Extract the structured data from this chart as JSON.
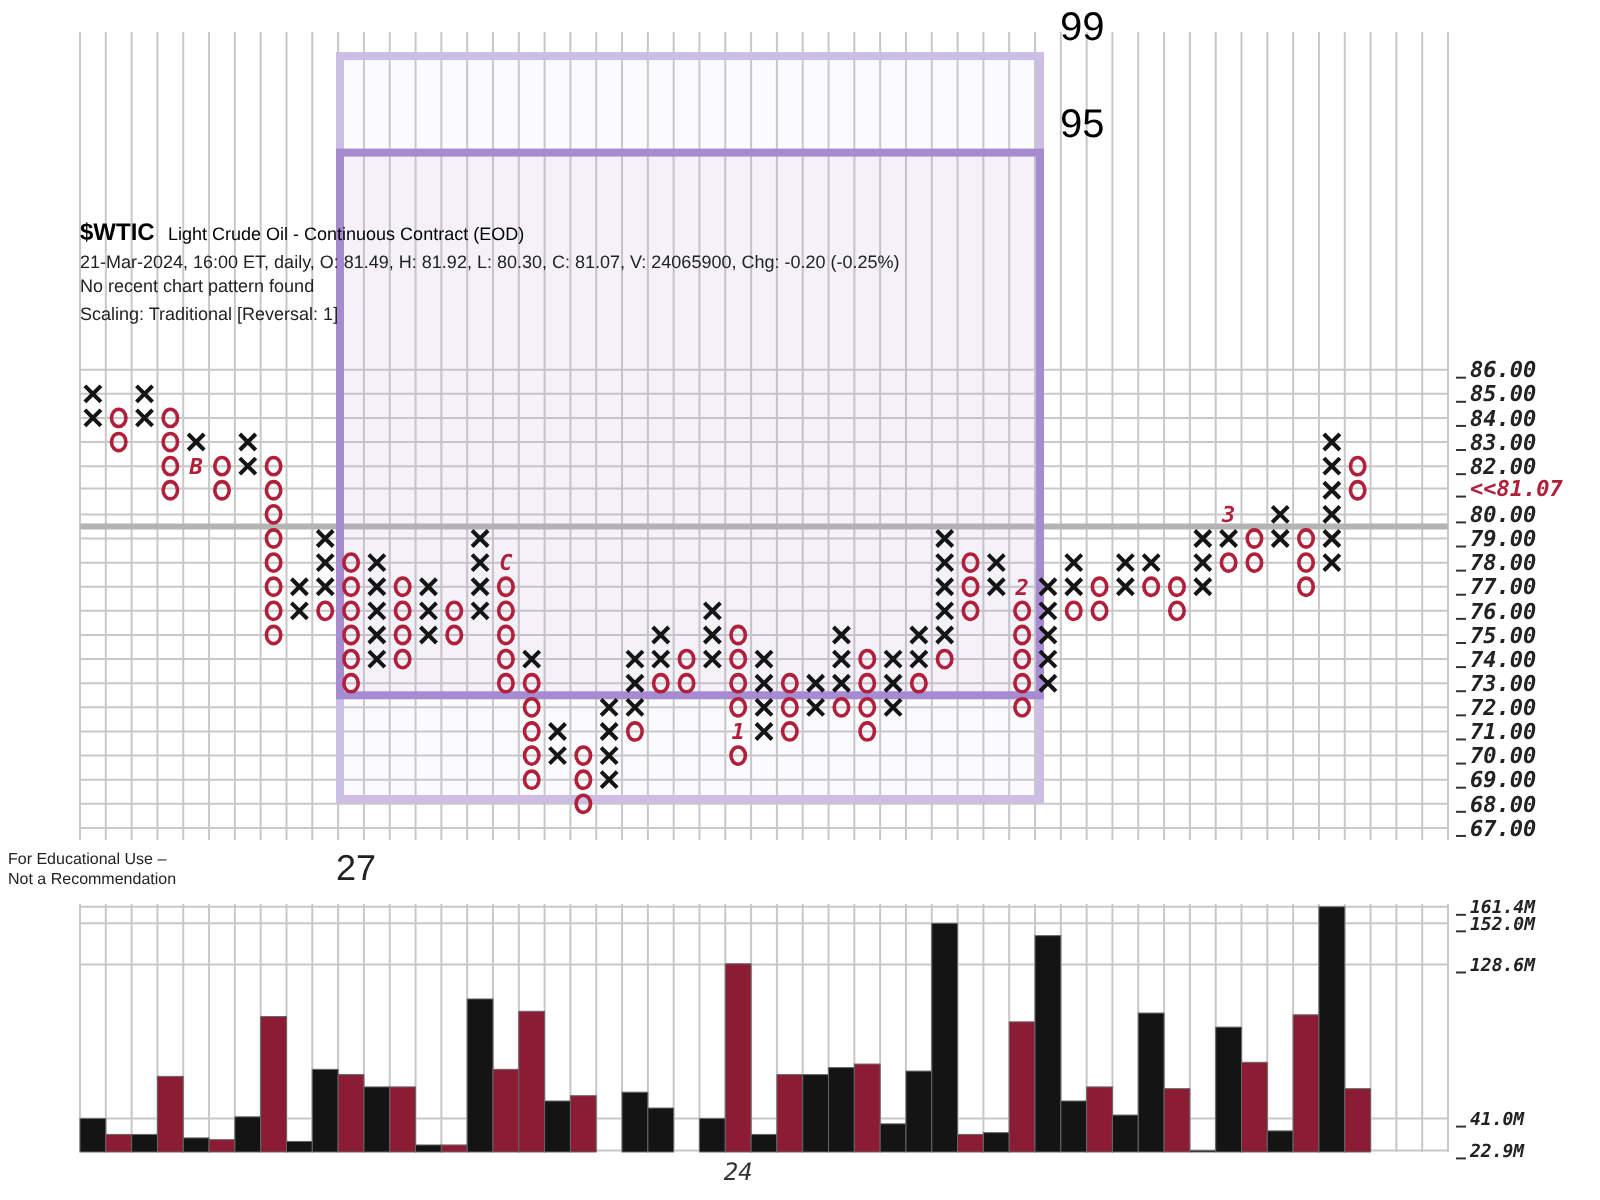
{
  "chart_data": [
    {
      "type": "scatter",
      "title": "$WTIC",
      "subtitle": "Light Crude Oil - Continuous Contract (EOD)",
      "annotations": [
        "21-Mar-2024, 16:00 ET, daily, O: 81.49, H: 81.92, L: 80.30, C: 81.07, V: 24065900, Chg: -0.20 (-0.25%)",
        "No recent chart pattern found",
        "Scaling: Traditional [Reversal: 1]",
        "For Educational Use – Not a Recommendation",
        "27",
        "B",
        "C",
        "1",
        "2",
        "3"
      ],
      "categories": [
        null,
        null,
        null,
        null,
        null,
        null,
        null,
        null,
        null,
        null,
        null,
        null,
        null,
        null,
        null,
        null,
        null,
        null,
        null,
        null,
        null,
        null,
        null,
        null,
        null,
        null,
        null,
        null,
        null,
        null,
        null,
        null,
        null,
        null,
        null,
        null,
        null,
        null,
        null,
        null,
        null,
        null,
        null,
        null,
        null,
        null,
        null,
        null,
        null,
        null,
        null,
        null,
        null
      ],
      "series": [
        {
          "marker": "cross",
          "color": "#141414",
          "values": [
            84,
            null,
            84,
            null,
            null,
            null,
            82,
            null,
            76,
            77,
            null,
            74,
            null,
            75,
            null,
            76,
            null,
            74,
            70,
            null,
            69,
            72,
            74,
            null,
            74,
            null,
            71,
            null,
            72,
            73,
            null,
            72,
            74,
            75,
            null,
            77,
            null,
            73,
            77,
            null,
            77,
            78,
            null,
            77,
            79,
            null,
            79,
            null,
            78,
            null,
            null,
            null,
            null
          ]
        },
        {
          "marker": "cross",
          "color": "#141414",
          "values": [
            85,
            null,
            85,
            null,
            83,
            null,
            83,
            null,
            77,
            78,
            null,
            75,
            null,
            76,
            null,
            77,
            null,
            null,
            71,
            null,
            70,
            73,
            75,
            null,
            75,
            null,
            72,
            null,
            73,
            74,
            null,
            73,
            75,
            76,
            null,
            78,
            null,
            74,
            78,
            null,
            78,
            null,
            null,
            78,
            null,
            null,
            80,
            null,
            79,
            null,
            null,
            null,
            null
          ]
        },
        {
          "marker": "cross",
          "color": "#141414",
          "values": [
            null,
            null,
            null,
            null,
            null,
            null,
            null,
            null,
            null,
            79,
            null,
            76,
            null,
            77,
            null,
            78,
            null,
            null,
            null,
            null,
            71,
            74,
            null,
            null,
            76,
            null,
            73,
            null,
            null,
            75,
            null,
            74,
            null,
            77,
            null,
            null,
            null,
            75,
            null,
            null,
            null,
            null,
            null,
            79,
            null,
            null,
            null,
            null,
            80,
            null,
            null,
            null,
            null
          ]
        },
        {
          "marker": "cross",
          "color": "#141414",
          "values": [
            null,
            null,
            null,
            null,
            null,
            null,
            null,
            null,
            null,
            null,
            null,
            77,
            null,
            null,
            null,
            79,
            null,
            null,
            null,
            null,
            72,
            null,
            null,
            null,
            null,
            null,
            74,
            null,
            null,
            null,
            null,
            null,
            null,
            78,
            null,
            null,
            null,
            76,
            null,
            null,
            null,
            null,
            null,
            null,
            null,
            null,
            null,
            null,
            81,
            null,
            null,
            null,
            null
          ]
        },
        {
          "marker": "cross",
          "color": "#141414",
          "values": [
            null,
            null,
            null,
            null,
            null,
            null,
            null,
            null,
            null,
            null,
            null,
            78,
            null,
            null,
            null,
            null,
            null,
            null,
            null,
            null,
            null,
            null,
            null,
            null,
            null,
            null,
            null,
            null,
            null,
            null,
            null,
            null,
            null,
            79,
            null,
            null,
            null,
            77,
            null,
            null,
            null,
            null,
            null,
            null,
            null,
            null,
            null,
            null,
            82,
            null,
            null,
            null,
            null
          ]
        },
        {
          "marker": "cross",
          "color": "#141414",
          "values": [
            null,
            null,
            null,
            null,
            null,
            null,
            null,
            null,
            null,
            null,
            null,
            null,
            null,
            null,
            null,
            null,
            null,
            null,
            null,
            null,
            null,
            null,
            null,
            null,
            null,
            null,
            null,
            null,
            null,
            null,
            null,
            null,
            null,
            null,
            null,
            null,
            null,
            null,
            null,
            null,
            null,
            null,
            null,
            null,
            null,
            null,
            null,
            null,
            83,
            null,
            null,
            null,
            null
          ]
        },
        {
          "marker": "circle",
          "color": "#b0203a",
          "values": [
            null,
            83,
            null,
            81,
            null,
            81,
            null,
            75,
            null,
            76,
            73,
            null,
            74,
            null,
            75,
            null,
            73,
            69,
            null,
            68,
            null,
            71,
            73,
            73,
            null,
            70,
            null,
            71,
            null,
            72,
            71,
            null,
            73,
            74,
            76,
            null,
            72,
            null,
            76,
            76,
            null,
            77,
            76,
            null,
            78,
            78,
            null,
            77,
            null,
            81,
            null,
            null,
            null
          ]
        },
        {
          "marker": "circle",
          "color": "#b0203a",
          "values": [
            null,
            84,
            null,
            82,
            null,
            82,
            null,
            76,
            null,
            null,
            74,
            null,
            75,
            null,
            76,
            null,
            74,
            70,
            null,
            69,
            null,
            null,
            null,
            74,
            null,
            null,
            null,
            72,
            null,
            null,
            72,
            null,
            null,
            null,
            77,
            null,
            73,
            null,
            null,
            77,
            null,
            null,
            77,
            null,
            null,
            79,
            null,
            78,
            null,
            82,
            null,
            null,
            null
          ]
        },
        {
          "marker": "circle",
          "color": "#b0203a",
          "values": [
            null,
            null,
            null,
            83,
            null,
            null,
            null,
            77,
            null,
            null,
            75,
            null,
            76,
            null,
            null,
            null,
            75,
            71,
            null,
            70,
            null,
            null,
            null,
            null,
            null,
            72,
            null,
            73,
            null,
            null,
            73,
            null,
            null,
            null,
            78,
            null,
            74,
            null,
            null,
            null,
            null,
            null,
            null,
            null,
            null,
            null,
            null,
            79,
            null,
            null,
            null,
            null,
            null
          ]
        },
        {
          "marker": "circle",
          "color": "#b0203a",
          "values": [
            null,
            null,
            null,
            84,
            null,
            null,
            null,
            78,
            null,
            null,
            76,
            null,
            77,
            null,
            null,
            null,
            76,
            72,
            null,
            null,
            null,
            null,
            null,
            null,
            null,
            73,
            null,
            null,
            null,
            null,
            74,
            null,
            null,
            null,
            null,
            null,
            75,
            null,
            null,
            null,
            null,
            null,
            null,
            null,
            null,
            null,
            null,
            null,
            null,
            null,
            null,
            null,
            null
          ]
        },
        {
          "marker": "circle",
          "color": "#b0203a",
          "values": [
            null,
            null,
            null,
            null,
            null,
            null,
            null,
            79,
            null,
            null,
            77,
            null,
            null,
            null,
            null,
            null,
            77,
            73,
            null,
            null,
            null,
            null,
            null,
            null,
            null,
            74,
            null,
            null,
            null,
            null,
            null,
            null,
            null,
            null,
            null,
            null,
            76,
            null,
            null,
            null,
            null,
            null,
            null,
            null,
            null,
            null,
            null,
            null,
            null,
            null,
            null,
            null,
            null
          ]
        },
        {
          "marker": "circle",
          "color": "#b0203a",
          "values": [
            null,
            null,
            null,
            null,
            null,
            null,
            null,
            80,
            null,
            null,
            78,
            null,
            null,
            null,
            null,
            null,
            null,
            null,
            null,
            null,
            null,
            null,
            null,
            null,
            null,
            75,
            null,
            null,
            null,
            null,
            null,
            null,
            null,
            null,
            null,
            null,
            null,
            null,
            null,
            null,
            null,
            null,
            null,
            null,
            null,
            null,
            null,
            null,
            null,
            null,
            null,
            null,
            null
          ]
        },
        {
          "marker": "circle",
          "color": "#b0203a",
          "values": [
            null,
            null,
            null,
            null,
            null,
            null,
            null,
            81,
            null,
            null,
            null,
            null,
            null,
            null,
            null,
            null,
            null,
            null,
            null,
            null,
            null,
            null,
            null,
            null,
            null,
            null,
            null,
            null,
            null,
            null,
            null,
            null,
            null,
            null,
            null,
            null,
            null,
            null,
            null,
            null,
            null,
            null,
            null,
            null,
            null,
            null,
            null,
            null,
            null,
            null,
            null,
            null,
            null
          ]
        },
        {
          "marker": "circle",
          "color": "#b0203a",
          "values": [
            null,
            null,
            null,
            null,
            null,
            null,
            null,
            82,
            null,
            null,
            null,
            null,
            null,
            null,
            null,
            null,
            null,
            null,
            null,
            null,
            null,
            null,
            null,
            null,
            null,
            null,
            null,
            null,
            null,
            null,
            null,
            null,
            null,
            null,
            null,
            null,
            null,
            null,
            null,
            null,
            null,
            null,
            null,
            null,
            null,
            null,
            null,
            null,
            null,
            null,
            null,
            null,
            null
          ]
        }
      ],
      "ylim": [
        66.5,
        100
      ],
      "yticks": [
        {
          "value": 67,
          "label": "67.00"
        },
        {
          "value": 68,
          "label": "68.00"
        },
        {
          "value": 69,
          "label": "69.00"
        },
        {
          "value": 70,
          "label": "70.00"
        },
        {
          "value": 71,
          "label": "71.00"
        },
        {
          "value": 72,
          "label": "72.00"
        },
        {
          "value": 73,
          "label": "73.00"
        },
        {
          "value": 74,
          "label": "74.00"
        },
        {
          "value": 75,
          "label": "75.00"
        },
        {
          "value": 76,
          "label": "76.00"
        },
        {
          "value": 77,
          "label": "77.00"
        },
        {
          "value": 78,
          "label": "78.00"
        },
        {
          "value": 79,
          "label": "79.00"
        },
        {
          "value": 80,
          "label": "80.00"
        },
        {
          "value": 81.07,
          "label": "<<81.07"
        },
        {
          "value": 82,
          "label": "82.00"
        },
        {
          "value": 83,
          "label": "83.00"
        },
        {
          "value": 84,
          "label": "84.00"
        },
        {
          "value": 85,
          "label": "85.00"
        },
        {
          "value": 86,
          "label": "86.00"
        }
      ],
      "tick_labels": "y",
      "grid": true,
      "ref_lines": [
        {
          "axis": "y",
          "value": 79.5,
          "color": "#b4b4b4"
        }
      ],
      "bands": [
        {
          "axis": "y",
          "from": 68.2,
          "to": 99,
          "label": "99",
          "color": "#cbbde3"
        },
        {
          "axis": "y",
          "from": 72.5,
          "to": 95,
          "label": "95",
          "color": "#a68bd0"
        }
      ]
    },
    {
      "type": "bar",
      "categories": [
        null,
        null,
        null,
        null,
        null,
        null,
        null,
        null,
        null,
        null,
        null,
        null,
        null,
        null,
        null,
        null,
        null,
        null,
        null,
        null,
        null,
        null,
        null,
        null,
        null,
        "24",
        null,
        null,
        null,
        null,
        null,
        null,
        null,
        null,
        null,
        null,
        null,
        null,
        null,
        null,
        null,
        null,
        null,
        null,
        null,
        null,
        null,
        null,
        null,
        null,
        null,
        null,
        null
      ],
      "values": [
        41.0,
        32,
        32,
        65,
        30,
        29,
        42,
        99,
        28,
        69,
        66,
        59,
        59,
        26,
        26,
        109,
        69,
        102,
        51,
        54,
        null,
        56,
        47,
        null,
        41.0,
        129,
        32,
        66,
        66,
        70,
        72,
        38,
        68,
        152.0,
        32,
        33,
        96,
        145,
        51,
        59,
        43,
        101,
        58,
        22.9,
        93,
        73,
        34,
        100,
        161.4,
        58,
        null,
        null,
        null
      ],
      "colors": [
        "#141414",
        "#8c1c34",
        "#141414",
        "#8c1c34",
        "#141414",
        "#8c1c34",
        "#141414",
        "#8c1c34",
        "#141414",
        "#141414",
        "#8c1c34",
        "#141414",
        "#8c1c34",
        "#141414",
        "#8c1c34",
        "#141414",
        "#8c1c34",
        "#8c1c34",
        "#141414",
        "#8c1c34",
        null,
        "#141414",
        "#141414",
        null,
        "#141414",
        "#8c1c34",
        "#141414",
        "#8c1c34",
        "#141414",
        "#141414",
        "#8c1c34",
        "#141414",
        "#141414",
        "#141414",
        "#8c1c34",
        "#141414",
        "#8c1c34",
        "#141414",
        "#141414",
        "#8c1c34",
        "#141414",
        "#141414",
        "#8c1c34",
        "#141414",
        "#141414",
        "#8c1c34",
        "#141414",
        "#8c1c34",
        "#141414",
        "#8c1c34",
        null,
        null,
        null
      ],
      "ylim": [
        22,
        163
      ],
      "yticks": [
        {
          "value": 22.9,
          "label": "22.9M"
        },
        {
          "value": 41.0,
          "label": "41.0M"
        },
        {
          "value": 128.6,
          "label": "128.6M"
        },
        {
          "value": 152.0,
          "label": "152.0M"
        },
        {
          "value": 161.4,
          "label": "161.4M"
        }
      ],
      "grid": true
    }
  ]
}
